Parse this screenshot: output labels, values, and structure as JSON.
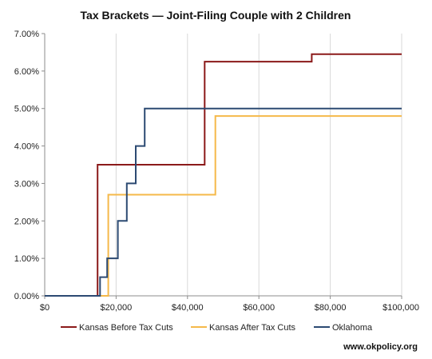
{
  "chart_data": {
    "type": "line",
    "title": "Tax Brackets — Joint-Filing Couple with 2 Children",
    "xlabel": "",
    "ylabel": "",
    "x_ticks": [
      "$0",
      "$20,000",
      "$40,000",
      "$60,000",
      "$80,000",
      "$100,000"
    ],
    "y_ticks": [
      "0.00%",
      "1.00%",
      "2.00%",
      "3.00%",
      "4.00%",
      "5.00%",
      "6.00%",
      "7.00%"
    ],
    "xlim": [
      0,
      100000
    ],
    "ylim": [
      0,
      7
    ],
    "grid": "vertical",
    "legend_position": "bottom",
    "series": [
      {
        "name": "Kansas Before Tax Cuts",
        "color": "#8b1a1a",
        "x": [
          0,
          14800,
          14800,
          44800,
          44800,
          74800,
          74800,
          100000
        ],
        "y": [
          0,
          0,
          3.5,
          3.5,
          6.25,
          6.25,
          6.45,
          6.45
        ]
      },
      {
        "name": "Kansas After Tax Cuts",
        "color": "#f5b94a",
        "x": [
          0,
          17800,
          17800,
          47800,
          47800,
          100000
        ],
        "y": [
          0,
          0,
          2.7,
          2.7,
          4.8,
          4.8
        ]
      },
      {
        "name": "Oklahoma",
        "color": "#2c4a72",
        "x": [
          0,
          15500,
          15500,
          17500,
          17500,
          20500,
          20500,
          23000,
          23000,
          25500,
          25500,
          28000,
          28000,
          100000
        ],
        "y": [
          0,
          0,
          0.5,
          0.5,
          1,
          1,
          2,
          2,
          3,
          3,
          4,
          4,
          5,
          5
        ]
      }
    ]
  },
  "footer": {
    "source": "www.okpolicy.org"
  }
}
